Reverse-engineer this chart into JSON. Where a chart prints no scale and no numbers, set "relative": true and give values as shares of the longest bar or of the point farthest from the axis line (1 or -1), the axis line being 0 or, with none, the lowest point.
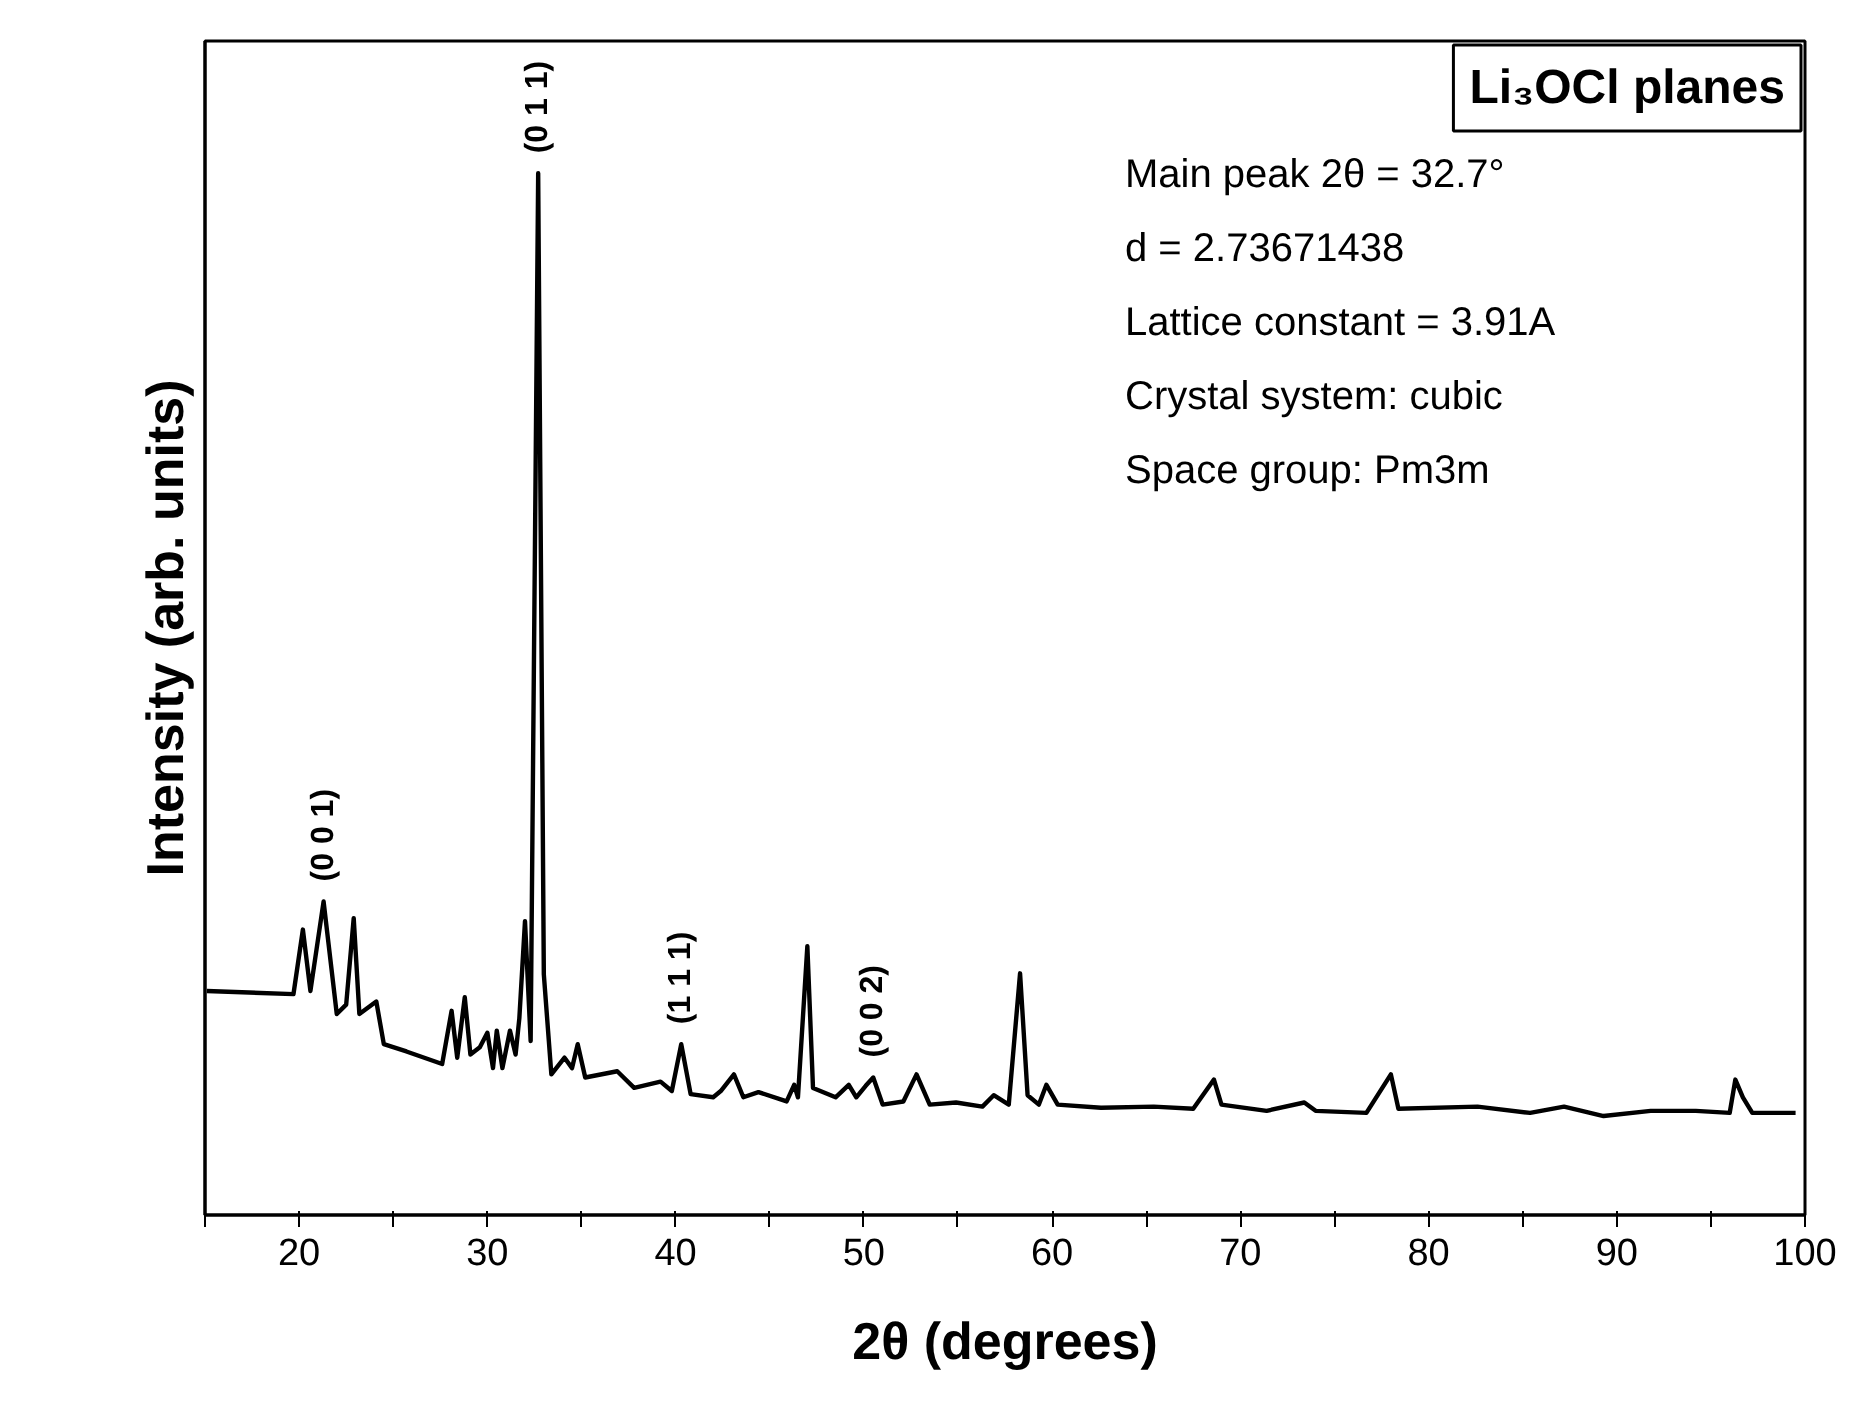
{
  "chart_data": {
    "type": "line",
    "title": "Li₃OCl planes",
    "xlabel": "2θ (degrees)",
    "ylabel": "Intensity (arb. units)",
    "relative": true,
    "xlim": [
      15,
      100
    ],
    "xticks": [
      {
        "value": 15,
        "label": null
      },
      20,
      {
        "value": 25,
        "label": null
      },
      30,
      {
        "value": 35,
        "label": null
      },
      40,
      {
        "value": 45,
        "label": null
      },
      50,
      {
        "value": 55,
        "label": null
      },
      60,
      {
        "value": 65,
        "label": null
      },
      70,
      {
        "value": 75,
        "label": null
      },
      80,
      {
        "value": 85,
        "label": null
      },
      90,
      {
        "value": 95,
        "label": null
      },
      100
    ],
    "grid": false,
    "marker": "none",
    "line_style": "solid",
    "series": [
      {
        "color": "#000000",
        "x": [
          15.1,
          19.7,
          20.2,
          20.6,
          21.3,
          22.0,
          22.5,
          22.9,
          23.2,
          24.1,
          24.5,
          25.7,
          27.6,
          28.1,
          28.4,
          28.8,
          29.1,
          29.6,
          30.0,
          30.3,
          30.5,
          30.8,
          31.2,
          31.5,
          31.7,
          32.0,
          32.3,
          32.7,
          33.0,
          33.4,
          34.1,
          34.5,
          34.8,
          35.2,
          36.9,
          37.8,
          39.2,
          39.8,
          40.3,
          40.8,
          42.0,
          42.4,
          43.1,
          43.6,
          44.4,
          45.9,
          46.3,
          46.5,
          47.0,
          47.3,
          48.5,
          49.2,
          49.6,
          50.1,
          50.5,
          51.0,
          52.1,
          52.8,
          53.5,
          54.9,
          56.3,
          56.9,
          57.7,
          58.3,
          58.7,
          59.3,
          59.7,
          60.3,
          62.6,
          65.4,
          67.5,
          68.6,
          69.0,
          71.4,
          73.4,
          74.0,
          76.7,
          78.0,
          78.4,
          82.6,
          85.4,
          87.2,
          89.3,
          91.8,
          94.2,
          96.0,
          96.3,
          96.7,
          97.2,
          99.5
        ],
        "values": [
          0.215,
          0.212,
          0.274,
          0.215,
          0.301,
          0.193,
          0.202,
          0.285,
          0.193,
          0.205,
          0.164,
          0.157,
          0.145,
          0.196,
          0.151,
          0.209,
          0.154,
          0.161,
          0.175,
          0.141,
          0.177,
          0.141,
          0.177,
          0.154,
          0.189,
          0.282,
          0.167,
          1.0,
          0.231,
          0.135,
          0.151,
          0.141,
          0.164,
          0.132,
          0.138,
          0.122,
          0.128,
          0.119,
          0.164,
          0.116,
          0.113,
          0.119,
          0.135,
          0.113,
          0.118,
          0.109,
          0.125,
          0.113,
          0.258,
          0.122,
          0.113,
          0.125,
          0.113,
          0.124,
          0.132,
          0.106,
          0.109,
          0.135,
          0.106,
          0.108,
          0.104,
          0.115,
          0.106,
          0.232,
          0.115,
          0.106,
          0.125,
          0.106,
          0.103,
          0.104,
          0.102,
          0.13,
          0.106,
          0.1,
          0.108,
          0.1,
          0.098,
          0.135,
          0.102,
          0.104,
          0.098,
          0.104,
          0.095,
          0.1,
          0.1,
          0.098,
          0.13,
          0.113,
          0.098,
          0.098
        ]
      }
    ],
    "annotations": [
      {
        "text": "(0 0 1)",
        "x": 21.3,
        "y": 0.301
      },
      {
        "text": "(0 1 1)",
        "x": 32.7,
        "y": 1.0
      },
      {
        "text": "(1 1 1)",
        "x": 40.3,
        "y": 0.164
      },
      {
        "text": "(0 0 2)",
        "x": 50.5,
        "y": 0.132
      },
      "Main peak 2θ = 32.7°",
      "d = 2.73671438",
      "Lattice constant = 3.91A",
      "Crystal system: cubic",
      "Space group: Pm3m"
    ]
  }
}
